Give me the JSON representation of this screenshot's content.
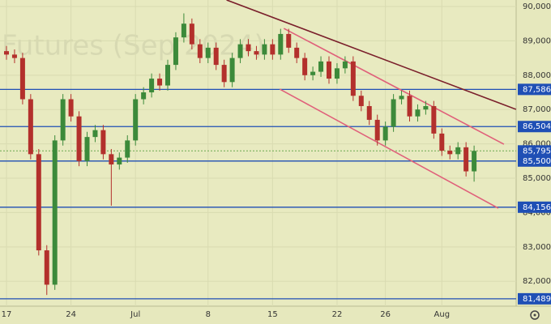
{
  "chart_data": {
    "type": "candlestick",
    "watermark": "Futures (Sep 2024)",
    "categories": [
      "17",
      null,
      null,
      null,
      null,
      null,
      null,
      null,
      "24",
      null,
      null,
      null,
      null,
      null,
      null,
      null,
      "Jul",
      null,
      null,
      null,
      null,
      null,
      null,
      null,
      null,
      "8",
      null,
      null,
      null,
      null,
      null,
      null,
      null,
      "15",
      null,
      null,
      null,
      null,
      null,
      null,
      null,
      "22",
      null,
      null,
      null,
      null,
      null,
      "26",
      null,
      null,
      null,
      null,
      null,
      null,
      "Aug",
      null,
      null,
      null,
      null
    ],
    "open": [
      88700,
      88600,
      88500,
      87300,
      85700,
      82900,
      81900,
      86100,
      87300,
      86800,
      85500,
      86200,
      86400,
      85700,
      85400,
      85600,
      86100,
      87300,
      87500,
      87900,
      87700,
      88300,
      89100,
      89500,
      88900,
      88500,
      88800,
      88300,
      87800,
      88500,
      88900,
      88700,
      88600,
      88900,
      88600,
      89200,
      88800,
      88500,
      88000,
      88100,
      88400,
      87900,
      88200,
      88400,
      87400,
      87100,
      86700,
      86100,
      86500,
      87300,
      87400,
      86800,
      87000,
      87100,
      86300,
      85800,
      85700,
      85900,
      85200
    ],
    "high": [
      88850,
      88750,
      88650,
      87450,
      85850,
      83050,
      86250,
      87450,
      87450,
      86950,
      86350,
      86550,
      86550,
      85850,
      85750,
      86250,
      87450,
      87650,
      88050,
      88050,
      88450,
      89250,
      89800,
      89650,
      89050,
      88950,
      88950,
      88450,
      88650,
      89050,
      89050,
      88850,
      89050,
      89050,
      89350,
      89350,
      88950,
      88650,
      88250,
      88550,
      88550,
      88350,
      88550,
      88550,
      87550,
      87250,
      86850,
      86650,
      87450,
      87550,
      87550,
      87150,
      87250,
      87250,
      86450,
      85950,
      86050,
      86050,
      85950
    ],
    "low": [
      88450,
      88350,
      87150,
      85550,
      82750,
      81600,
      81750,
      85950,
      86650,
      85350,
      85350,
      86050,
      85550,
      84200,
      85250,
      85450,
      85950,
      87150,
      87350,
      87550,
      87550,
      88150,
      88950,
      88750,
      88350,
      88350,
      88150,
      87650,
      87650,
      88350,
      88550,
      88450,
      88450,
      88450,
      88450,
      88650,
      88350,
      87850,
      87850,
      87950,
      87750,
      87750,
      88050,
      87250,
      86950,
      86550,
      85950,
      85950,
      86350,
      87150,
      86650,
      86650,
      86850,
      86150,
      85650,
      85550,
      85550,
      85050,
      84900
    ],
    "close": [
      88600,
      88500,
      87300,
      85700,
      82900,
      81900,
      86100,
      87300,
      86800,
      85500,
      86200,
      86400,
      85700,
      85400,
      85600,
      86100,
      87300,
      87500,
      87900,
      87700,
      88300,
      89100,
      89500,
      88900,
      88500,
      88800,
      88300,
      87800,
      88500,
      88900,
      88700,
      88600,
      88900,
      88600,
      89200,
      88800,
      88500,
      88000,
      88100,
      88400,
      87900,
      88200,
      88400,
      87400,
      87100,
      86700,
      86100,
      86500,
      87300,
      87400,
      86800,
      87000,
      87100,
      86300,
      85800,
      85700,
      85900,
      85200,
      85795
    ],
    "up_color": "#3c8a3a",
    "down_color": "#b3302c",
    "ylim": [
      81274,
      90189
    ],
    "yticks": [
      {
        "value": 82000,
        "label": "82,000"
      },
      {
        "value": 83000,
        "label": "83,000"
      },
      {
        "value": 84000,
        "label": "84,000"
      },
      {
        "value": 85000,
        "label": "85,000"
      },
      {
        "value": 86000,
        "label": "86,000"
      },
      {
        "value": 87000,
        "label": "87,000"
      },
      {
        "value": 88000,
        "label": "88,000"
      },
      {
        "value": 89000,
        "label": "89,000"
      },
      {
        "value": 90000,
        "label": "90,000"
      }
    ],
    "grid": true,
    "levels": [
      {
        "value": 87586,
        "label": "87,586"
      },
      {
        "value": 86504,
        "label": "86,504"
      },
      {
        "value": 85500,
        "label": "85,500"
      },
      {
        "value": 84156,
        "label": "84,156"
      },
      {
        "value": 81489,
        "label": "81,489"
      }
    ],
    "level_color": "#1f4fb5",
    "last_price": {
      "value": 85795,
      "label": "85,795"
    },
    "last_price_color": "#6aa84f",
    "trendlines": [
      {
        "x0": 27.3,
        "y0": 90190,
        "x1": 63.2,
        "y1": 87005,
        "color": "#7a1f2b"
      },
      {
        "x0": 34.4,
        "y0": 89363,
        "x1": 61.7,
        "y1": 85990,
        "color": "#e0607a"
      },
      {
        "x0": 33.9,
        "y0": 87594,
        "x1": 61.0,
        "y1": 84127,
        "color": "#e0607a"
      }
    ]
  }
}
